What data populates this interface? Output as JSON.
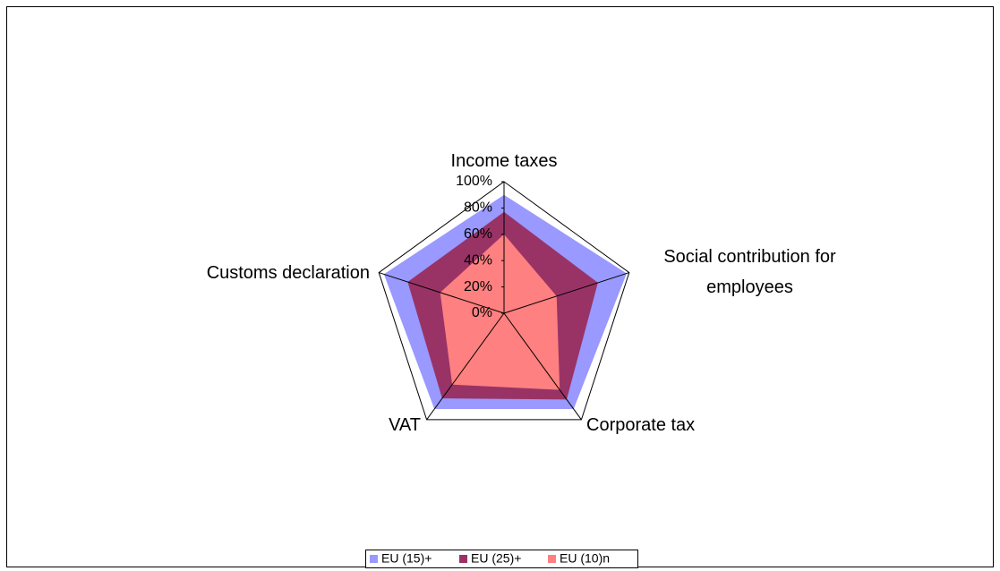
{
  "chart_data": {
    "type": "radar",
    "categories": [
      "Income taxes",
      "Social contribution for employees",
      "Corporate tax",
      "VAT",
      "Customs declaration"
    ],
    "series": [
      {
        "name": "EU (15)+",
        "color": "#9999ff",
        "values": [
          90,
          98,
          90,
          90,
          96
        ]
      },
      {
        "name": "EU (25)+",
        "color": "#993366",
        "values": [
          77,
          75,
          81,
          80,
          77
        ]
      },
      {
        "name": "EU (10)n",
        "color": "#ff8080",
        "values": [
          60,
          42,
          72,
          67,
          51
        ]
      }
    ],
    "ylim": [
      0,
      100
    ],
    "yticks": [
      {
        "value": 0,
        "label": "0%"
      },
      {
        "value": 20,
        "label": "20%"
      },
      {
        "value": 40,
        "label": "40%"
      },
      {
        "value": 60,
        "label": "60%"
      },
      {
        "value": 80,
        "label": "80%"
      },
      {
        "value": 100,
        "label": "100%"
      }
    ],
    "legend": "bottom"
  }
}
